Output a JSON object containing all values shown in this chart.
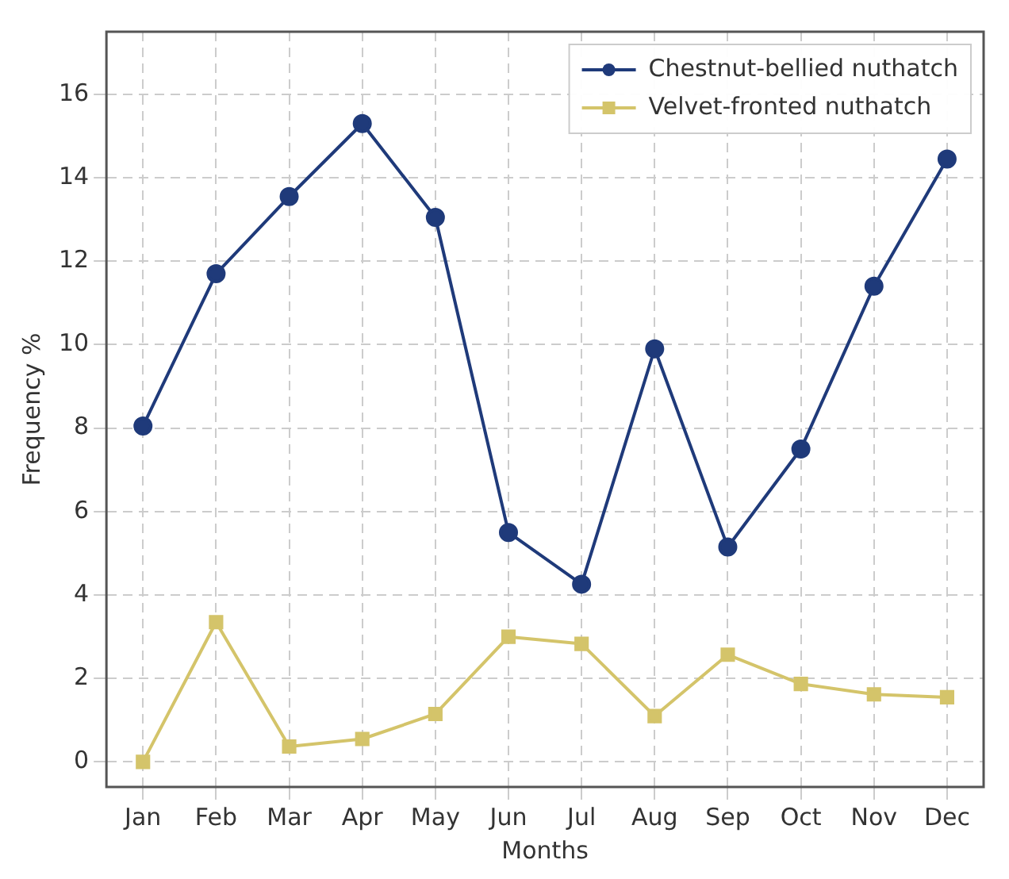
{
  "chart_data": {
    "type": "line",
    "xlabel": "Months",
    "ylabel": "Frequency %",
    "categories": [
      "Jan",
      "Feb",
      "Mar",
      "Apr",
      "May",
      "Jun",
      "Jul",
      "Aug",
      "Sep",
      "Oct",
      "Nov",
      "Dec"
    ],
    "series": [
      {
        "name": "Chestnut-bellied nuthatch",
        "color": "#1f3a7a",
        "marker": "circle",
        "values": [
          8.05,
          11.7,
          13.55,
          15.3,
          13.05,
          5.5,
          4.26,
          9.9,
          5.15,
          7.5,
          11.4,
          14.45
        ]
      },
      {
        "name": "Velvet-fronted nuthatch",
        "color": "#d4c46a",
        "marker": "square",
        "values": [
          0,
          3.35,
          0.37,
          0.55,
          1.15,
          3.0,
          2.83,
          1.1,
          2.57,
          1.87,
          1.62,
          1.55
        ]
      }
    ],
    "ylim": [
      -0.6,
      17.5
    ],
    "yticks": [
      0,
      2,
      4,
      6,
      8,
      10,
      12,
      14,
      16
    ],
    "grid": true,
    "legend": "top right",
    "line_style": "solid"
  }
}
